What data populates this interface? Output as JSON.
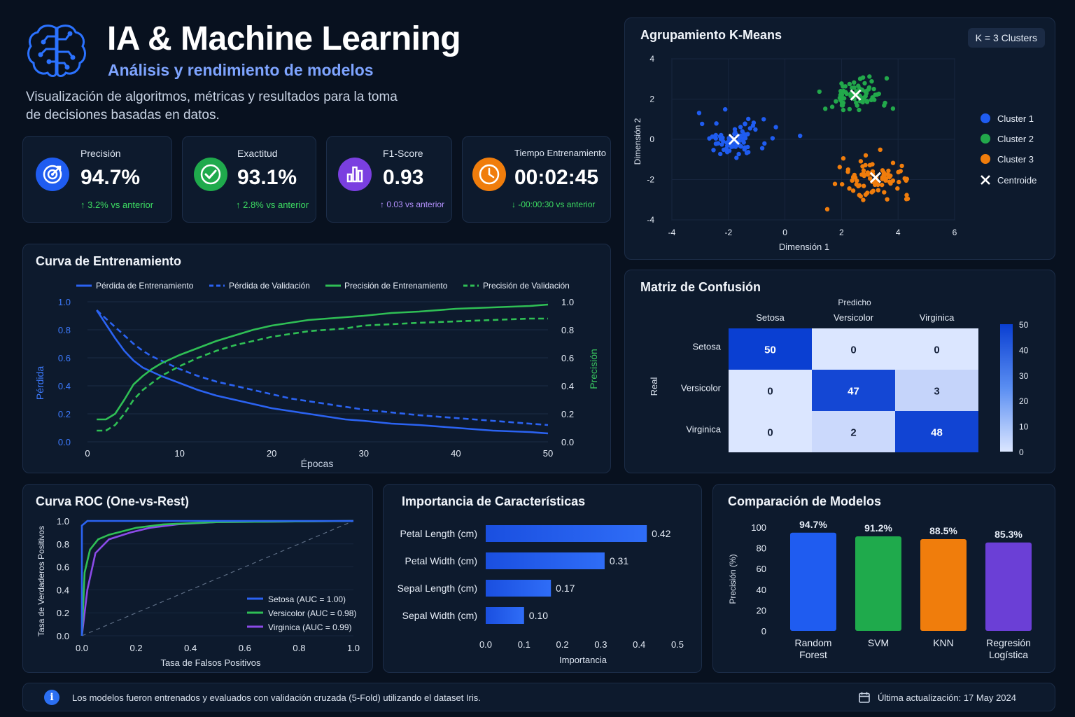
{
  "header": {
    "title": "IA & Machine Learning",
    "subtitle": "Análisis y rendimiento de modelos",
    "description_line1": "Visualización de algoritmos, métricas y resultados para la toma",
    "description_line2": "de decisiones basadas en datos."
  },
  "metrics": [
    {
      "label": "Precisión",
      "value": "94.7%",
      "delta": "↑ 3.2% vs anterior",
      "color": "#1f5cf0",
      "icon": "target-icon",
      "delta_color": "#3ddc62"
    },
    {
      "label": "Exactitud",
      "value": "93.1%",
      "delta": "↑ 2.8% vs anterior",
      "color": "#1faa4c",
      "icon": "check-circle-icon",
      "delta_color": "#3ddc62"
    },
    {
      "label": "F1-Score",
      "value": "0.93",
      "delta": "↑ 0.03 vs anterior",
      "color": "#7a3fe0",
      "icon": "bar-chart-icon",
      "delta_color": "#b592ff"
    },
    {
      "label": "Tiempo Entrenamiento",
      "value": "00:02:45",
      "delta": "↓ -00:00:30 vs anterior",
      "color": "#f07d0c",
      "icon": "clock-icon",
      "delta_color": "#3ddc62"
    }
  ],
  "training": {
    "title": "Curva de Entrenamiento",
    "legend": [
      "Pérdida de Entrenamiento",
      "Pérdida de Validación",
      "Precisión de Entrenamiento",
      "Precisión de Validación"
    ],
    "ylabel_left": "Pérdida",
    "ylabel_right": "Precisión",
    "xlabel": "Épocas",
    "xticks": [
      "0",
      "10",
      "20",
      "30",
      "40",
      "50"
    ],
    "yticks": [
      "0.0",
      "0.2",
      "0.4",
      "0.6",
      "0.8",
      "1.0"
    ]
  },
  "kmeans": {
    "title": "Agrupamiento K-Means",
    "badge": "K = 3 Clusters",
    "xlabel": "Dimensión 1",
    "ylabel": "Dimensión 2",
    "xticks": [
      "-4",
      "-2",
      "0",
      "2",
      "4",
      "6"
    ],
    "yticks": [
      "4",
      "2",
      "0",
      "-2",
      "-4"
    ],
    "legend": [
      "Cluster 1",
      "Cluster 2",
      "Cluster 3",
      "Centroide"
    ]
  },
  "confusion": {
    "title": "Matriz de Confusión",
    "predicted_label": "Predicho",
    "real_label": "Real",
    "classes": [
      "Setosa",
      "Versicolor",
      "Virginica"
    ],
    "colorbar_ticks": [
      "50",
      "40",
      "30",
      "20",
      "10",
      "0"
    ]
  },
  "roc": {
    "title": "Curva ROC (One-vs-Rest)",
    "xlabel": "Tasa de Falsos Positivos",
    "ylabel": "Tasa de Verdaderos Positivos",
    "ticks": [
      "0.0",
      "0.2",
      "0.4",
      "0.6",
      "0.8",
      "1.0"
    ],
    "legend": [
      "Setosa (AUC = 1.00)",
      "Versicolor (AUC = 0.98)",
      "Virginica (AUC = 0.99)"
    ]
  },
  "importance": {
    "title": "Importancia de Características",
    "xlabel": "Importancia",
    "xticks": [
      "0.0",
      "0.1",
      "0.2",
      "0.3",
      "0.4",
      "0.5"
    ]
  },
  "comparison": {
    "title": "Comparación de Modelos",
    "ylabel": "Precisión (%)",
    "yticks": [
      "100",
      "80",
      "60",
      "40",
      "20",
      "0"
    ]
  },
  "footer": {
    "note": "Los modelos fueron entrenados y evaluados con validación cruzada (5-Fold) utilizando el dataset Iris.",
    "updated": "Última actualización: 17 May 2024"
  },
  "chart_data": [
    {
      "type": "line",
      "title": "Curva de Entrenamiento",
      "xlabel": "Épocas",
      "ylabel": "Pérdida",
      "xlim": [
        0,
        50
      ],
      "ylim": [
        0,
        1
      ],
      "x": [
        1,
        2,
        3,
        4,
        5,
        6,
        7,
        8,
        10,
        12,
        14,
        16,
        18,
        20,
        22,
        24,
        26,
        28,
        30,
        33,
        36,
        40,
        44,
        48,
        50
      ],
      "series": [
        {
          "name": "Pérdida de Entrenamiento",
          "color": "#2b63f2",
          "dash": false,
          "axis": "left",
          "values": [
            0.94,
            0.84,
            0.74,
            0.65,
            0.58,
            0.53,
            0.5,
            0.47,
            0.42,
            0.37,
            0.33,
            0.3,
            0.27,
            0.24,
            0.22,
            0.2,
            0.18,
            0.16,
            0.15,
            0.13,
            0.12,
            0.1,
            0.08,
            0.07,
            0.06
          ]
        },
        {
          "name": "Pérdida de Validación",
          "color": "#2b63f2",
          "dash": true,
          "axis": "left",
          "values": [
            0.94,
            0.88,
            0.82,
            0.76,
            0.7,
            0.65,
            0.61,
            0.58,
            0.52,
            0.47,
            0.43,
            0.4,
            0.37,
            0.34,
            0.31,
            0.29,
            0.27,
            0.25,
            0.23,
            0.21,
            0.19,
            0.17,
            0.15,
            0.13,
            0.12
          ]
        },
        {
          "name": "Precisión de Entrenamiento",
          "color": "#2fbf55",
          "dash": false,
          "axis": "right",
          "values": [
            0.16,
            0.16,
            0.2,
            0.3,
            0.41,
            0.47,
            0.52,
            0.56,
            0.62,
            0.67,
            0.72,
            0.76,
            0.8,
            0.83,
            0.85,
            0.87,
            0.88,
            0.89,
            0.9,
            0.92,
            0.93,
            0.95,
            0.96,
            0.97,
            0.98
          ]
        },
        {
          "name": "Precisión de Validación",
          "color": "#2fbf55",
          "dash": true,
          "axis": "right",
          "values": [
            0.08,
            0.08,
            0.12,
            0.2,
            0.3,
            0.37,
            0.42,
            0.47,
            0.54,
            0.6,
            0.65,
            0.69,
            0.72,
            0.75,
            0.77,
            0.79,
            0.8,
            0.81,
            0.83,
            0.84,
            0.85,
            0.86,
            0.87,
            0.88,
            0.88
          ]
        }
      ]
    },
    {
      "type": "scatter",
      "title": "Agrupamiento K-Means",
      "xlabel": "Dimensión 1",
      "ylabel": "Dimensión 2",
      "xlim": [
        -4,
        6
      ],
      "ylim": [
        -4,
        4
      ],
      "series": [
        {
          "name": "Cluster 1",
          "color": "#1f5cf0",
          "center": [
            -1.8,
            0
          ],
          "spread": [
            1.0,
            0.75
          ],
          "n": 80
        },
        {
          "name": "Cluster 2",
          "color": "#22a84b",
          "center": [
            2.5,
            2.2
          ],
          "spread": [
            0.95,
            0.75
          ],
          "n": 80
        },
        {
          "name": "Cluster 3",
          "color": "#f07d0c",
          "center": [
            3.2,
            -1.9
          ],
          "spread": [
            1.05,
            0.75
          ],
          "n": 80
        }
      ],
      "centroids": [
        [
          -1.8,
          0
        ],
        [
          2.5,
          2.2
        ],
        [
          3.2,
          -1.9
        ]
      ]
    },
    {
      "type": "heatmap",
      "title": "Matriz de Confusión",
      "rows": [
        "Setosa",
        "Versicolor",
        "Virginica"
      ],
      "columns": [
        "Setosa",
        "Versicolor",
        "Virginica"
      ],
      "values": [
        [
          50,
          0,
          0
        ],
        [
          0,
          47,
          3
        ],
        [
          0,
          2,
          48
        ]
      ],
      "vmin": 0,
      "vmax": 50
    },
    {
      "type": "line",
      "title": "Curva ROC (One-vs-Rest)",
      "xlabel": "Tasa de Falsos Positivos",
      "ylabel": "Tasa de Verdaderos Positivos",
      "xlim": [
        0,
        1
      ],
      "ylim": [
        0,
        1
      ],
      "series": [
        {
          "name": "Setosa (AUC = 1.00)",
          "color": "#2b63f2",
          "points": [
            [
              0,
              0
            ],
            [
              0,
              0.96
            ],
            [
              0.02,
              1
            ],
            [
              1,
              1
            ]
          ]
        },
        {
          "name": "Versicolor (AUC = 0.98)",
          "color": "#2fbf55",
          "points": [
            [
              0,
              0
            ],
            [
              0.01,
              0.55
            ],
            [
              0.03,
              0.75
            ],
            [
              0.06,
              0.84
            ],
            [
              0.1,
              0.88
            ],
            [
              0.15,
              0.91
            ],
            [
              0.2,
              0.94
            ],
            [
              0.3,
              0.97
            ],
            [
              0.5,
              0.99
            ],
            [
              1,
              1
            ]
          ]
        },
        {
          "name": "Virginica (AUC = 0.99)",
          "color": "#8b4be8",
          "points": [
            [
              0,
              0
            ],
            [
              0.02,
              0.4
            ],
            [
              0.05,
              0.72
            ],
            [
              0.1,
              0.84
            ],
            [
              0.18,
              0.9
            ],
            [
              0.25,
              0.94
            ],
            [
              0.35,
              0.97
            ],
            [
              0.5,
              0.99
            ],
            [
              1,
              1
            ]
          ]
        }
      ]
    },
    {
      "type": "bar",
      "title": "Importancia de Características",
      "orientation": "horizontal",
      "xlabel": "Importancia",
      "xlim": [
        0,
        0.5
      ],
      "categories": [
        "Petal Length (cm)",
        "Petal Width (cm)",
        "Sepal Length (cm)",
        "Sepal Width (cm)"
      ],
      "values": [
        0.42,
        0.31,
        0.17,
        0.1
      ],
      "labels": [
        "0.42",
        "0.31",
        "0.17",
        "0.10"
      ]
    },
    {
      "type": "bar",
      "title": "Comparación de Modelos",
      "ylabel": "Precisión (%)",
      "ylim": [
        0,
        100
      ],
      "categories": [
        [
          "Random",
          "Forest"
        ],
        [
          "SVM"
        ],
        [
          "KNN"
        ],
        [
          "Regresión",
          "Logística"
        ]
      ],
      "values": [
        94.7,
        91.2,
        88.5,
        85.3
      ],
      "labels": [
        "94.7%",
        "91.2%",
        "88.5%",
        "85.3%"
      ],
      "colors": [
        "#1f5cf0",
        "#1faa4c",
        "#f07d0c",
        "#6b3fd6"
      ]
    }
  ]
}
